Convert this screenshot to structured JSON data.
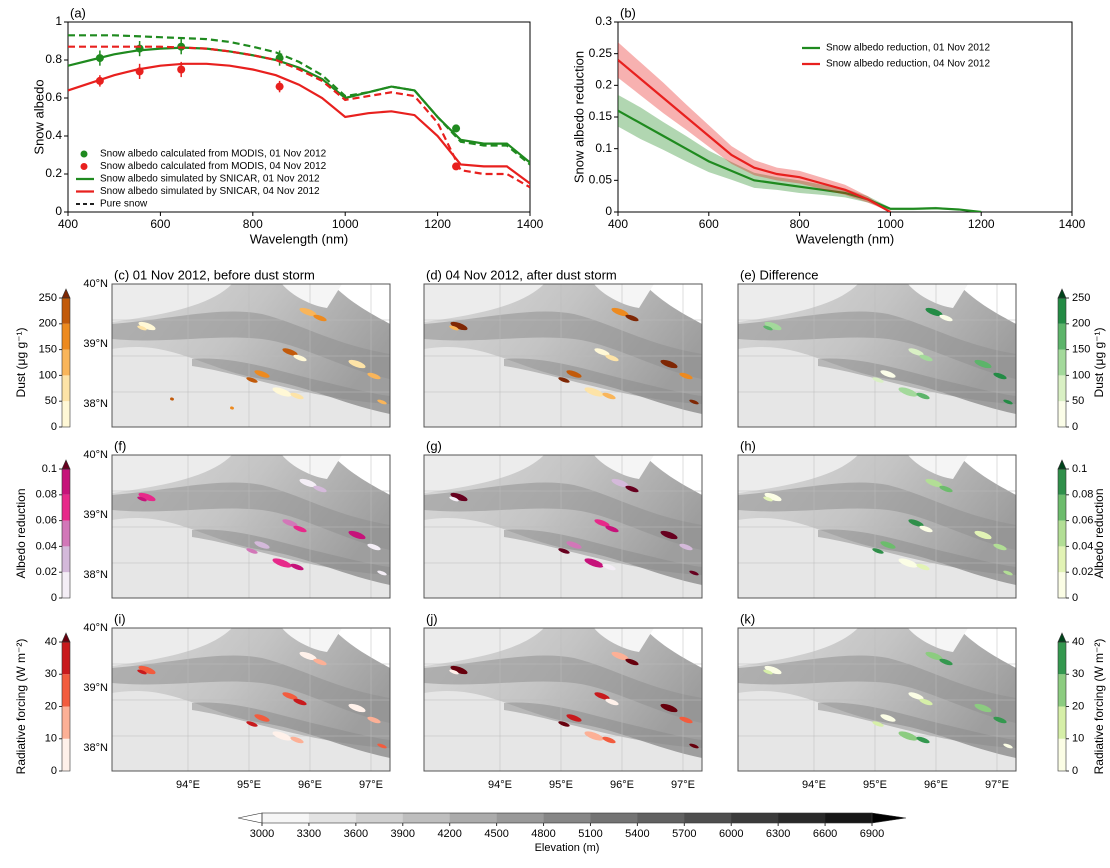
{
  "chart_data": [
    {
      "type": "line",
      "panel_label": "(a)",
      "xlabel": "Wavelength (nm)",
      "ylabel": "Snow albedo",
      "xlim": [
        400,
        1400
      ],
      "ylim": [
        0,
        1
      ],
      "xticks": [
        400,
        600,
        800,
        1000,
        1200,
        1400
      ],
      "yticks": [
        0,
        0.2,
        0.4,
        0.6,
        0.8,
        1
      ],
      "legend": "lower left",
      "pure_snow_label": "Pure snow",
      "pure_snow_color": "#000000",
      "series": [
        {
          "name": "Snow albedo calculated from MODIS, 01 Nov 2012",
          "color": "#1f8a1f",
          "marker": "circle",
          "x": [
            469,
            555,
            645,
            858,
            1240
          ],
          "values": [
            0.81,
            0.86,
            0.87,
            0.81,
            0.44
          ],
          "errors": [
            0.04,
            0.04,
            0.04,
            0.04,
            0.02
          ]
        },
        {
          "name": "Snow albedo calculated from MODIS, 04 Nov 2012",
          "color": "#e8201e",
          "marker": "circle",
          "x": [
            469,
            555,
            645,
            858,
            1240
          ],
          "values": [
            0.69,
            0.74,
            0.75,
            0.66,
            0.24
          ],
          "errors": [
            0.03,
            0.04,
            0.04,
            0.03,
            0.01
          ]
        },
        {
          "name": "Snow albedo simulated by SNICAR, 01 Nov 2012",
          "color": "#1f8a1f",
          "x": [
            400,
            450,
            500,
            550,
            600,
            650,
            700,
            750,
            800,
            850,
            900,
            950,
            1000,
            1050,
            1100,
            1150,
            1200,
            1250,
            1300,
            1350,
            1400
          ],
          "values": [
            0.77,
            0.8,
            0.83,
            0.85,
            0.86,
            0.865,
            0.86,
            0.845,
            0.825,
            0.8,
            0.76,
            0.7,
            0.6,
            0.63,
            0.66,
            0.64,
            0.5,
            0.38,
            0.36,
            0.36,
            0.26
          ]
        },
        {
          "name": "Snow albedo simulated by SNICAR, 04 Nov 2012",
          "color": "#e8201e",
          "x": [
            400,
            450,
            500,
            550,
            600,
            650,
            700,
            750,
            800,
            850,
            900,
            950,
            1000,
            1050,
            1100,
            1150,
            1200,
            1250,
            1300,
            1350,
            1400
          ],
          "values": [
            0.64,
            0.68,
            0.72,
            0.75,
            0.77,
            0.78,
            0.78,
            0.77,
            0.75,
            0.72,
            0.67,
            0.6,
            0.5,
            0.52,
            0.53,
            0.51,
            0.4,
            0.25,
            0.24,
            0.24,
            0.15
          ]
        },
        {
          "color": "#1f8a1f",
          "dash": true,
          "x": [
            400,
            450,
            500,
            550,
            600,
            650,
            700,
            750,
            800,
            850,
            900,
            950,
            1000,
            1050,
            1100,
            1150,
            1200,
            1250,
            1300,
            1350,
            1400
          ],
          "values": [
            0.93,
            0.93,
            0.93,
            0.925,
            0.92,
            0.915,
            0.91,
            0.895,
            0.87,
            0.84,
            0.79,
            0.72,
            0.61,
            0.63,
            0.66,
            0.64,
            0.5,
            0.37,
            0.35,
            0.35,
            0.25
          ]
        },
        {
          "color": "#e8201e",
          "dash": true,
          "x": [
            400,
            450,
            500,
            550,
            600,
            650,
            700,
            750,
            800,
            850,
            900,
            950,
            1000,
            1050,
            1100,
            1150,
            1200,
            1250,
            1300,
            1350,
            1400
          ],
          "values": [
            0.87,
            0.87,
            0.87,
            0.87,
            0.87,
            0.865,
            0.86,
            0.845,
            0.825,
            0.8,
            0.75,
            0.69,
            0.59,
            0.61,
            0.63,
            0.61,
            0.47,
            0.22,
            0.2,
            0.2,
            0.13
          ]
        }
      ]
    },
    {
      "type": "line",
      "panel_label": "(b)",
      "xlabel": "Wavelength (nm)",
      "ylabel": "Snow albedo reduction",
      "xlim": [
        400,
        1400
      ],
      "ylim": [
        0,
        0.3
      ],
      "xticks": [
        400,
        600,
        800,
        1000,
        1200,
        1400
      ],
      "yticks": [
        0,
        0.05,
        0.1,
        0.15,
        0.2,
        0.25,
        0.3
      ],
      "legend": "upper right",
      "series": [
        {
          "name": "Snow albedo reduction, 01 Nov 2012",
          "color": "#1f8a1f",
          "band": true,
          "x": [
            400,
            450,
            500,
            550,
            600,
            650,
            700,
            750,
            800,
            850,
            900,
            950,
            1000,
            1050,
            1100,
            1150,
            1200
          ],
          "values": [
            0.16,
            0.14,
            0.12,
            0.1,
            0.08,
            0.065,
            0.05,
            0.045,
            0.04,
            0.035,
            0.03,
            0.02,
            0.005,
            0.005,
            0.006,
            0.004,
            0
          ],
          "errors": [
            0.025,
            0.025,
            0.022,
            0.02,
            0.017,
            0.014,
            0.012,
            0.01,
            0.01,
            0.008,
            0.007,
            0.005,
            0.002,
            0.002,
            0.002,
            0.001,
            0
          ]
        },
        {
          "name": "Snow albedo reduction, 04 Nov 2012",
          "color": "#e8201e",
          "band": true,
          "x": [
            400,
            450,
            500,
            550,
            600,
            650,
            700,
            750,
            800,
            850,
            900,
            950,
            1000
          ],
          "values": [
            0.24,
            0.21,
            0.18,
            0.15,
            0.12,
            0.09,
            0.07,
            0.06,
            0.055,
            0.045,
            0.035,
            0.02,
            0
          ],
          "errors": [
            0.028,
            0.026,
            0.024,
            0.02,
            0.017,
            0.014,
            0.012,
            0.01,
            0.01,
            0.009,
            0.008,
            0.005,
            0
          ]
        }
      ]
    }
  ],
  "maps": {
    "panels": [
      "(c) 01 Nov 2012, before dust storm",
      "(d) 04 Nov 2012, after dust storm",
      "(e)  Difference",
      "(f)",
      "(g)",
      "(h)",
      "(i)",
      "(j)",
      "(k)"
    ],
    "lat_labels": [
      "40°N",
      "39°N",
      "38°N"
    ],
    "lon_labels": [
      "94°E",
      "95°E",
      "96°E",
      "97°E"
    ],
    "colorbars": [
      {
        "label": "Dust (μg g⁻¹)",
        "lim": [
          0,
          250
        ],
        "ticks": [
          0,
          50,
          100,
          150,
          200,
          250
        ],
        "colors": [
          "#fff8d6",
          "#fde3a7",
          "#f9b55a",
          "#ed8a1f",
          "#c25a0a"
        ],
        "extend_color": "#7f2704"
      },
      {
        "label": "Albedo reduction",
        "lim": [
          0,
          0.1
        ],
        "ticks": [
          0,
          0.02,
          0.04,
          0.06,
          0.08,
          0.1
        ],
        "colors": [
          "#f4eef6",
          "#d4b9da",
          "#d277b8",
          "#e7298a",
          "#c6127a"
        ],
        "extend_color": "#67001f"
      },
      {
        "label": "Radiative forcing (W m⁻²)",
        "lim": [
          0,
          40
        ],
        "ticks": [
          0,
          10,
          20,
          30,
          40
        ],
        "colors": [
          "#fff1ea",
          "#fcb096",
          "#f25c3e",
          "#c81a1d"
        ],
        "extend_color": "#67000d"
      },
      {
        "label": "Dust (μg g⁻¹)",
        "lim": [
          0,
          250
        ],
        "ticks": [
          0,
          50,
          100,
          150,
          200,
          250
        ],
        "colors": [
          "#fbfde8",
          "#d9f0c4",
          "#a3d99b",
          "#5cb46a",
          "#238b45"
        ],
        "extend_color": "#00441b"
      },
      {
        "label": "Albedo reduction",
        "lim": [
          0,
          0.1
        ],
        "ticks": [
          0,
          0.02,
          0.04,
          0.06,
          0.08,
          0.1
        ],
        "colors": [
          "#fbfde5",
          "#e2f3b5",
          "#b2de95",
          "#6cbc6c",
          "#2f8f4a"
        ],
        "extend_color": "#00441b"
      },
      {
        "label": "Radiative forcing (W m⁻²)",
        "lim": [
          0,
          40
        ],
        "ticks": [
          0,
          10,
          20,
          30,
          40
        ],
        "colors": [
          "#fbfde5",
          "#d6efa8",
          "#8ccc80",
          "#34984f"
        ],
        "extend_color": "#00441b"
      }
    ],
    "elevation": {
      "label": "Elevation (m)",
      "lim": [
        3000,
        6900
      ],
      "ticks": [
        3000,
        3300,
        3600,
        3900,
        4200,
        4500,
        4800,
        5100,
        5400,
        5700,
        6000,
        6300,
        6600,
        6900
      ],
      "colors": [
        "#ffffff",
        "#000000"
      ]
    }
  }
}
